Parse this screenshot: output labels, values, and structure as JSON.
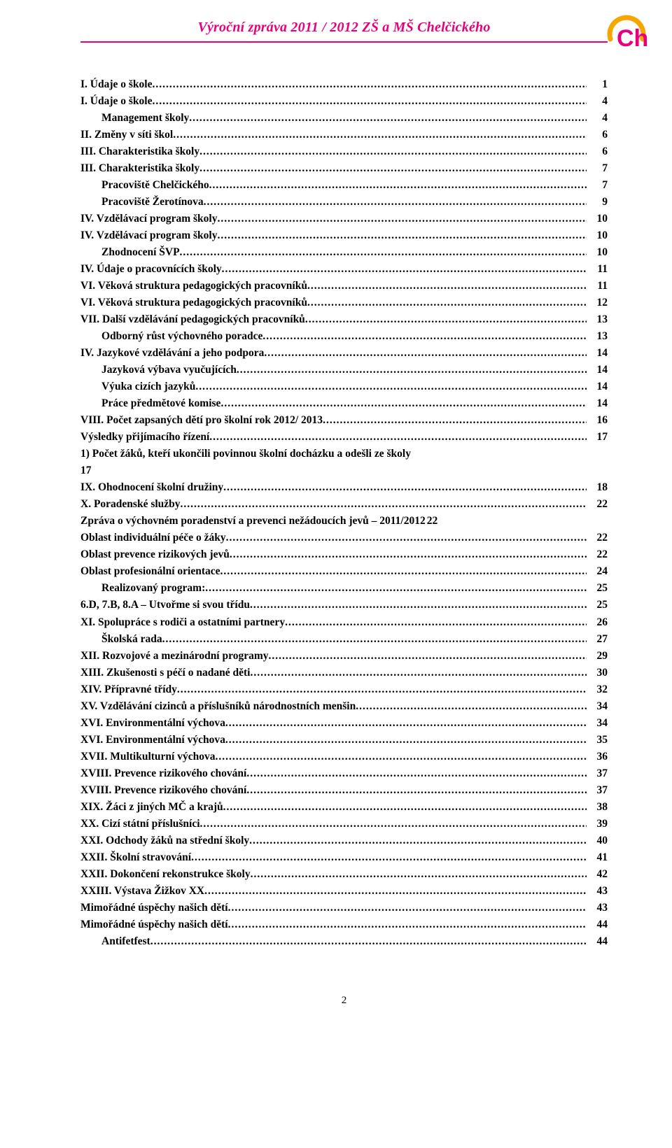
{
  "header": {
    "title": "Výroční zpráva 2011 / 2012 ZŠ a  MŠ Chelčického",
    "title_color": "#e6007e",
    "rule_color": "#e6007e"
  },
  "logo": {
    "arc_color": "#f7a600",
    "h_color": "#e6007e"
  },
  "page_number": "2",
  "toc": [
    {
      "indent": 0,
      "label": "I. Údaje o škole",
      "page": "1"
    },
    {
      "indent": 0,
      "label": "I. Údaje o škole",
      "page": "4"
    },
    {
      "indent": 1,
      "label": "Management školy",
      "page": "4"
    },
    {
      "indent": 0,
      "label": "II. Změny v síti škol",
      "page": "6"
    },
    {
      "indent": 0,
      "label": "III. Charakteristika školy",
      "page": "6"
    },
    {
      "indent": 0,
      "label": "III. Charakteristika školy",
      "page": "7"
    },
    {
      "indent": 1,
      "label": "Pracoviště Chelčického",
      "page": "7"
    },
    {
      "indent": 1,
      "label": "Pracoviště Žerotínova",
      "page": "9"
    },
    {
      "indent": 0,
      "label": "IV. Vzdělávací program školy",
      "page": "10"
    },
    {
      "indent": 0,
      "label": "IV. Vzdělávací program školy",
      "page": "10"
    },
    {
      "indent": 1,
      "label": "Zhodnocení ŠVP",
      "page": "10"
    },
    {
      "indent": 0,
      "label": "IV. Údaje o pracovnících školy",
      "page": "11"
    },
    {
      "indent": 0,
      "label": "VI. Věková struktura pedagogických pracovníků",
      "page": "11"
    },
    {
      "indent": 0,
      "label": "VI. Věková struktura pedagogických pracovníků",
      "page": "12"
    },
    {
      "indent": 0,
      "label": "VII. Další vzdělávání pedagogických pracovníků",
      "page": "13"
    },
    {
      "indent": 1,
      "label": "Odborný růst výchovného poradce",
      "page": "13"
    },
    {
      "indent": 0,
      "label": "IV. Jazykové vzdělávání a jeho podpora",
      "page": "14"
    },
    {
      "indent": 1,
      "label": "Jazyková výbava vyučujících",
      "page": "14"
    },
    {
      "indent": 1,
      "label": "Výuka cizích jazyků",
      "page": "14"
    },
    {
      "indent": 1,
      "label": "Práce předmětové komise",
      "page": "14"
    },
    {
      "indent": 0,
      "label": "VIII. Počet zapsaných dětí pro školní rok 2012/ 2013",
      "page": "16"
    },
    {
      "indent": 0,
      "label": "Výsledky přijímacího řízení",
      "page": "17"
    },
    {
      "indent": 0,
      "label": "1)   Počet žáků, kteří ukončili povinnou školní docházku a odešli ze školy",
      "page": "",
      "no_leader": true
    },
    {
      "indent": 0,
      "label": "       17",
      "page": "",
      "no_leader": true
    },
    {
      "indent": 0,
      "label": "IX. Ohodnocení školní družiny",
      "page": "18"
    },
    {
      "indent": 0,
      "label": "X. Poradenské služby",
      "page": "22"
    },
    {
      "indent": 0,
      "label": "Zpráva o výchovném poradenství a prevenci nežádoucích jevů – 2011/2012",
      "page": "22",
      "no_leader": true,
      "extra": "22"
    },
    {
      "indent": 0,
      "label": "Oblast individuální péče o žáky",
      "page": "22"
    },
    {
      "indent": 0,
      "label": "Oblast prevence rizikových jevů",
      "page": "22"
    },
    {
      "indent": 0,
      "label": "Oblast profesionální orientace",
      "page": "24"
    },
    {
      "indent": 1,
      "label": "Realizovaný program:",
      "page": "25"
    },
    {
      "indent": 0,
      "label": "6.D, 7.B, 8.A – Utvořme si svou třídu",
      "page": "25"
    },
    {
      "indent": 0,
      "label": "XI. Spolupráce s rodiči a ostatními partnery",
      "page": "26"
    },
    {
      "indent": 1,
      "label": "Školská rada",
      "page": "27"
    },
    {
      "indent": 0,
      "label": "XII. Rozvojové  a mezinárodní programy",
      "page": "29"
    },
    {
      "indent": 0,
      "label": "XIII. Zkušenosti s péčí o nadané děti",
      "page": "30"
    },
    {
      "indent": 0,
      "label": "XIV. Přípravné třídy",
      "page": "32"
    },
    {
      "indent": 0,
      "label": "XV. Vzdělávání cizinců a příslušníků národnostních menšin",
      "page": "34"
    },
    {
      "indent": 0,
      "label": "XVI. Environmentální výchova",
      "page": "34"
    },
    {
      "indent": 0,
      "label": "XVI. Environmentální výchova",
      "page": "35"
    },
    {
      "indent": 0,
      "label": "XVII. Multikulturní výchova",
      "page": "36"
    },
    {
      "indent": 0,
      "label": "XVIII. Prevence rizikového chování",
      "page": "37"
    },
    {
      "indent": 0,
      "label": "XVIII. Prevence rizikového chování",
      "page": "37"
    },
    {
      "indent": 0,
      "label": "XIX. Žáci z jiných MČ a krajů",
      "page": "38"
    },
    {
      "indent": 0,
      "label": "XX. Cizí státní příslušníci",
      "page": "39"
    },
    {
      "indent": 0,
      "label": "XXI. Odchody žáků na střední školy",
      "page": "40"
    },
    {
      "indent": 0,
      "label": "XXII. Školní stravování",
      "page": "41"
    },
    {
      "indent": 0,
      "label": "XXII. Dokončení rekonstrukce školy",
      "page": "42"
    },
    {
      "indent": 0,
      "label": "XXIII.   Výstava Žižkov XX",
      "page": "43"
    },
    {
      "indent": 0,
      "label": "Mimořádné úspěchy našich dětí",
      "page": "43"
    },
    {
      "indent": 0,
      "label": "Mimořádné úspěchy našich dětí",
      "page": "44"
    },
    {
      "indent": 1,
      "label": "Antifetfest",
      "page": "44"
    }
  ]
}
